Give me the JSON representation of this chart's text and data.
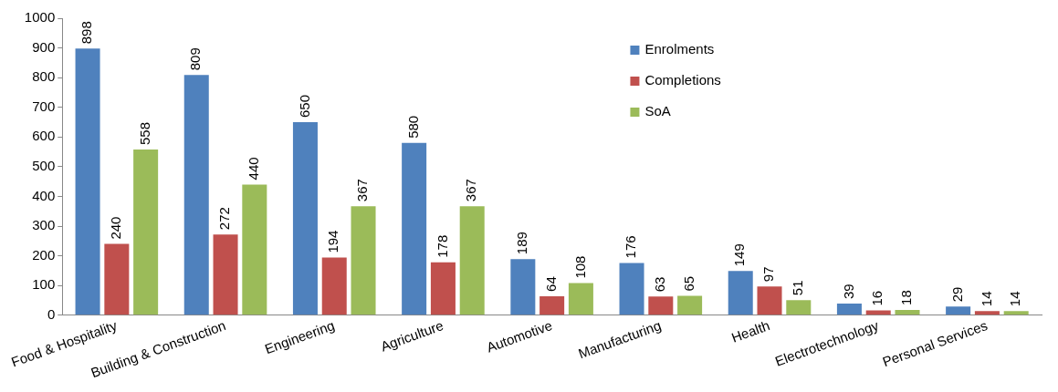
{
  "chart_data": {
    "type": "bar",
    "categories": [
      "Food & Hospitality",
      "Building & Construction",
      "Engineering",
      "Agriculture",
      "Automotive",
      "Manufacturing",
      "Health",
      "Electrotechnology",
      "Personal Services"
    ],
    "series": [
      {
        "name": "Enrolments",
        "color": "#4f81bd",
        "values": [
          898,
          809,
          650,
          580,
          189,
          176,
          149,
          39,
          29
        ]
      },
      {
        "name": "Completions",
        "color": "#c0504d",
        "values": [
          240,
          272,
          194,
          178,
          64,
          63,
          97,
          16,
          14
        ]
      },
      {
        "name": "SoA",
        "color": "#9bbb59",
        "values": [
          558,
          440,
          367,
          367,
          108,
          65,
          51,
          18,
          14
        ]
      }
    ],
    "ylim": [
      0,
      1000
    ],
    "yticks": [
      0,
      100,
      200,
      300,
      400,
      500,
      600,
      700,
      800,
      900,
      1000
    ],
    "grid": false,
    "legend": "top right",
    "data_labels": true
  }
}
